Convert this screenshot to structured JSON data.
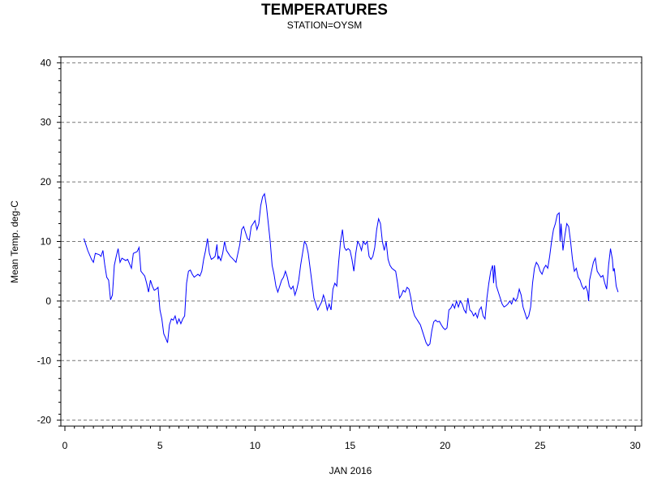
{
  "chart_data": {
    "type": "line",
    "title": "TEMPERATURES",
    "subtitle": "STATION=OYSM",
    "xlabel": "JAN 2016",
    "ylabel": "Mean Temp. deg-C",
    "xlim": [
      0,
      30
    ],
    "ylim": [
      -21,
      41
    ],
    "x_ticks": [
      0,
      5,
      10,
      15,
      20,
      25,
      30
    ],
    "y_ticks": [
      -20,
      -10,
      0,
      10,
      20,
      30,
      40
    ],
    "grid": "horizontal-dashed",
    "series": [
      {
        "color": "#0000ff",
        "points": [
          [
            1.0,
            10.5
          ],
          [
            1.2,
            8.5
          ],
          [
            1.4,
            7.0
          ],
          [
            1.5,
            6.5
          ],
          [
            1.6,
            8.0
          ],
          [
            1.8,
            7.8
          ],
          [
            1.9,
            7.5
          ],
          [
            2.0,
            8.5
          ],
          [
            2.1,
            6.0
          ],
          [
            2.2,
            4.0
          ],
          [
            2.3,
            3.5
          ],
          [
            2.4,
            0.2
          ],
          [
            2.5,
            1.0
          ],
          [
            2.6,
            6.0
          ],
          [
            2.7,
            7.5
          ],
          [
            2.8,
            8.8
          ],
          [
            2.9,
            6.5
          ],
          [
            3.0,
            7.2
          ],
          [
            3.2,
            6.8
          ],
          [
            3.3,
            7.0
          ],
          [
            3.5,
            5.5
          ],
          [
            3.6,
            8.0
          ],
          [
            3.8,
            8.3
          ],
          [
            3.9,
            9.0
          ],
          [
            4.0,
            5.0
          ],
          [
            4.2,
            4.2
          ],
          [
            4.3,
            3.0
          ],
          [
            4.4,
            1.5
          ],
          [
            4.5,
            3.5
          ],
          [
            4.6,
            2.5
          ],
          [
            4.7,
            1.8
          ],
          [
            4.8,
            2.0
          ],
          [
            4.9,
            2.3
          ],
          [
            5.0,
            -1.5
          ],
          [
            5.1,
            -3.0
          ],
          [
            5.2,
            -5.5
          ],
          [
            5.3,
            -6.2
          ],
          [
            5.4,
            -7.0
          ],
          [
            5.5,
            -4.0
          ],
          [
            5.6,
            -3.0
          ],
          [
            5.7,
            -3.2
          ],
          [
            5.8,
            -2.5
          ],
          [
            5.9,
            -3.8
          ],
          [
            6.0,
            -3.0
          ],
          [
            6.1,
            -3.8
          ],
          [
            6.2,
            -3.0
          ],
          [
            6.3,
            -2.5
          ],
          [
            6.4,
            3.0
          ],
          [
            6.5,
            5.0
          ],
          [
            6.6,
            5.2
          ],
          [
            6.7,
            4.5
          ],
          [
            6.8,
            4.0
          ],
          [
            7.0,
            4.5
          ],
          [
            7.1,
            4.2
          ],
          [
            7.2,
            5.0
          ],
          [
            7.3,
            7.0
          ],
          [
            7.4,
            8.5
          ],
          [
            7.5,
            10.5
          ],
          [
            7.6,
            8.0
          ],
          [
            7.7,
            7.0
          ],
          [
            7.8,
            7.2
          ],
          [
            7.9,
            7.5
          ],
          [
            8.0,
            9.5
          ],
          [
            8.05,
            7.0
          ],
          [
            8.1,
            7.5
          ],
          [
            8.2,
            6.8
          ],
          [
            8.3,
            8.0
          ],
          [
            8.4,
            10.0
          ],
          [
            8.5,
            8.5
          ],
          [
            8.6,
            8.0
          ],
          [
            8.7,
            7.5
          ],
          [
            8.8,
            7.2
          ],
          [
            9.0,
            6.5
          ],
          [
            9.1,
            8.0
          ],
          [
            9.2,
            9.5
          ],
          [
            9.3,
            12.0
          ],
          [
            9.4,
            12.5
          ],
          [
            9.5,
            11.5
          ],
          [
            9.6,
            10.5
          ],
          [
            9.7,
            10.2
          ],
          [
            9.8,
            12.5
          ],
          [
            9.9,
            13.0
          ],
          [
            10.0,
            13.5
          ],
          [
            10.1,
            12.0
          ],
          [
            10.2,
            13.0
          ],
          [
            10.3,
            16.0
          ],
          [
            10.4,
            17.5
          ],
          [
            10.5,
            18.0
          ],
          [
            10.6,
            16.0
          ],
          [
            10.7,
            13.0
          ],
          [
            10.8,
            10.0
          ],
          [
            10.9,
            6.0
          ],
          [
            11.0,
            4.5
          ],
          [
            11.1,
            2.5
          ],
          [
            11.2,
            1.5
          ],
          [
            11.3,
            2.5
          ],
          [
            11.4,
            3.5
          ],
          [
            11.5,
            4.0
          ],
          [
            11.6,
            5.0
          ],
          [
            11.7,
            4.0
          ],
          [
            11.8,
            2.5
          ],
          [
            11.9,
            2.0
          ],
          [
            12.0,
            2.5
          ],
          [
            12.1,
            1.0
          ],
          [
            12.2,
            2.0
          ],
          [
            12.3,
            3.5
          ],
          [
            12.4,
            6.0
          ],
          [
            12.5,
            8.0
          ],
          [
            12.6,
            10.0
          ],
          [
            12.7,
            9.5
          ],
          [
            12.8,
            8.0
          ],
          [
            12.9,
            5.5
          ],
          [
            13.0,
            3.0
          ],
          [
            13.1,
            0.5
          ],
          [
            13.2,
            -0.5
          ],
          [
            13.3,
            -1.5
          ],
          [
            13.4,
            -0.8
          ],
          [
            13.5,
            -0.2
          ],
          [
            13.6,
            1.0
          ],
          [
            13.7,
            0.0
          ],
          [
            13.8,
            -1.5
          ],
          [
            13.9,
            -0.5
          ],
          [
            14.0,
            -1.5
          ],
          [
            14.1,
            2.0
          ],
          [
            14.2,
            3.0
          ],
          [
            14.3,
            2.5
          ],
          [
            14.4,
            6.5
          ],
          [
            14.5,
            10.0
          ],
          [
            14.6,
            12.0
          ],
          [
            14.7,
            9.0
          ],
          [
            14.8,
            8.5
          ],
          [
            14.9,
            8.8
          ],
          [
            15.0,
            8.5
          ],
          [
            15.1,
            7.0
          ],
          [
            15.2,
            5.0
          ],
          [
            15.3,
            8.0
          ],
          [
            15.4,
            10.0
          ],
          [
            15.5,
            9.5
          ],
          [
            15.6,
            8.5
          ],
          [
            15.7,
            10.0
          ],
          [
            15.8,
            9.5
          ],
          [
            15.9,
            10.0
          ],
          [
            16.0,
            7.5
          ],
          [
            16.1,
            7.0
          ],
          [
            16.2,
            7.5
          ],
          [
            16.3,
            9.0
          ],
          [
            16.4,
            12.0
          ],
          [
            16.5,
            13.8
          ],
          [
            16.6,
            13.0
          ],
          [
            16.7,
            10.0
          ],
          [
            16.8,
            8.5
          ],
          [
            16.9,
            10.0
          ],
          [
            17.0,
            7.0
          ],
          [
            17.1,
            6.0
          ],
          [
            17.2,
            5.5
          ],
          [
            17.4,
            5.0
          ],
          [
            17.5,
            3.0
          ],
          [
            17.6,
            0.5
          ],
          [
            17.7,
            1.0
          ],
          [
            17.8,
            1.8
          ],
          [
            17.9,
            1.5
          ],
          [
            18.0,
            2.3
          ],
          [
            18.1,
            2.0
          ],
          [
            18.2,
            0.5
          ],
          [
            18.3,
            -1.5
          ],
          [
            18.4,
            -2.5
          ],
          [
            18.5,
            -3.0
          ],
          [
            18.6,
            -3.5
          ],
          [
            18.7,
            -4.0
          ],
          [
            18.8,
            -5.0
          ],
          [
            18.9,
            -6.0
          ],
          [
            19.0,
            -7.0
          ],
          [
            19.1,
            -7.5
          ],
          [
            19.2,
            -7.2
          ],
          [
            19.3,
            -5.0
          ],
          [
            19.4,
            -3.5
          ],
          [
            19.5,
            -3.2
          ],
          [
            19.6,
            -3.5
          ],
          [
            19.7,
            -3.4
          ],
          [
            19.8,
            -4.0
          ],
          [
            19.9,
            -4.5
          ],
          [
            20.0,
            -4.8
          ],
          [
            20.1,
            -4.5
          ],
          [
            20.2,
            -1.5
          ],
          [
            20.3,
            -1.2
          ],
          [
            20.4,
            -0.5
          ],
          [
            20.5,
            -1.2
          ],
          [
            20.6,
            0.0
          ],
          [
            20.7,
            -1.0
          ],
          [
            20.8,
            0.0
          ],
          [
            20.9,
            -0.5
          ],
          [
            21.0,
            -1.5
          ],
          [
            21.1,
            -2.0
          ],
          [
            21.2,
            0.5
          ],
          [
            21.3,
            -1.5
          ],
          [
            21.4,
            -1.8
          ],
          [
            21.5,
            -2.5
          ],
          [
            21.6,
            -2.0
          ],
          [
            21.7,
            -2.8
          ],
          [
            21.8,
            -1.5
          ],
          [
            21.9,
            -1.0
          ],
          [
            22.0,
            -2.5
          ],
          [
            22.1,
            -3.0
          ],
          [
            22.2,
            0.5
          ],
          [
            22.3,
            3.0
          ],
          [
            22.4,
            5.0
          ],
          [
            22.5,
            6.0
          ],
          [
            22.55,
            3.0
          ],
          [
            22.6,
            6.0
          ],
          [
            22.7,
            2.5
          ],
          [
            22.8,
            1.5
          ],
          [
            22.9,
            0.5
          ],
          [
            23.0,
            -0.5
          ],
          [
            23.1,
            -1.0
          ],
          [
            23.2,
            -0.8
          ],
          [
            23.3,
            -0.5
          ],
          [
            23.4,
            0.0
          ],
          [
            23.5,
            -0.5
          ],
          [
            23.6,
            0.5
          ],
          [
            23.7,
            0.0
          ],
          [
            23.8,
            0.5
          ],
          [
            23.9,
            2.0
          ],
          [
            24.0,
            1.0
          ],
          [
            24.1,
            -1.0
          ],
          [
            24.2,
            -2.0
          ],
          [
            24.3,
            -3.0
          ],
          [
            24.4,
            -2.5
          ],
          [
            24.5,
            -1.0
          ],
          [
            24.6,
            3.0
          ],
          [
            24.7,
            5.5
          ],
          [
            24.8,
            6.5
          ],
          [
            24.9,
            6.0
          ],
          [
            25.0,
            5.0
          ],
          [
            25.1,
            4.5
          ],
          [
            25.2,
            5.5
          ],
          [
            25.3,
            6.0
          ],
          [
            25.4,
            5.5
          ],
          [
            25.5,
            7.5
          ],
          [
            25.6,
            10.0
          ],
          [
            25.7,
            12.0
          ],
          [
            25.8,
            13.0
          ],
          [
            25.9,
            14.5
          ],
          [
            26.0,
            14.8
          ],
          [
            26.05,
            10.0
          ],
          [
            26.1,
            13.0
          ],
          [
            26.2,
            8.5
          ],
          [
            26.3,
            11.0
          ],
          [
            26.4,
            13.0
          ],
          [
            26.5,
            12.5
          ],
          [
            26.6,
            10.0
          ],
          [
            26.7,
            7.0
          ],
          [
            26.8,
            5.0
          ],
          [
            26.9,
            5.5
          ],
          [
            27.0,
            4.0
          ],
          [
            27.1,
            3.5
          ],
          [
            27.2,
            2.5
          ],
          [
            27.3,
            2.0
          ],
          [
            27.4,
            2.5
          ],
          [
            27.5,
            1.5
          ],
          [
            27.55,
            0.0
          ],
          [
            27.6,
            3.5
          ],
          [
            27.7,
            5.0
          ],
          [
            27.8,
            6.5
          ],
          [
            27.9,
            7.2
          ],
          [
            28.0,
            5.0
          ],
          [
            28.1,
            4.5
          ],
          [
            28.2,
            4.0
          ],
          [
            28.3,
            4.3
          ],
          [
            28.4,
            3.0
          ],
          [
            28.5,
            2.0
          ],
          [
            28.6,
            6.0
          ],
          [
            28.7,
            8.8
          ],
          [
            28.8,
            7.0
          ],
          [
            28.85,
            5.0
          ],
          [
            28.9,
            5.5
          ],
          [
            29.0,
            2.5
          ],
          [
            29.1,
            1.5
          ]
        ]
      }
    ]
  }
}
